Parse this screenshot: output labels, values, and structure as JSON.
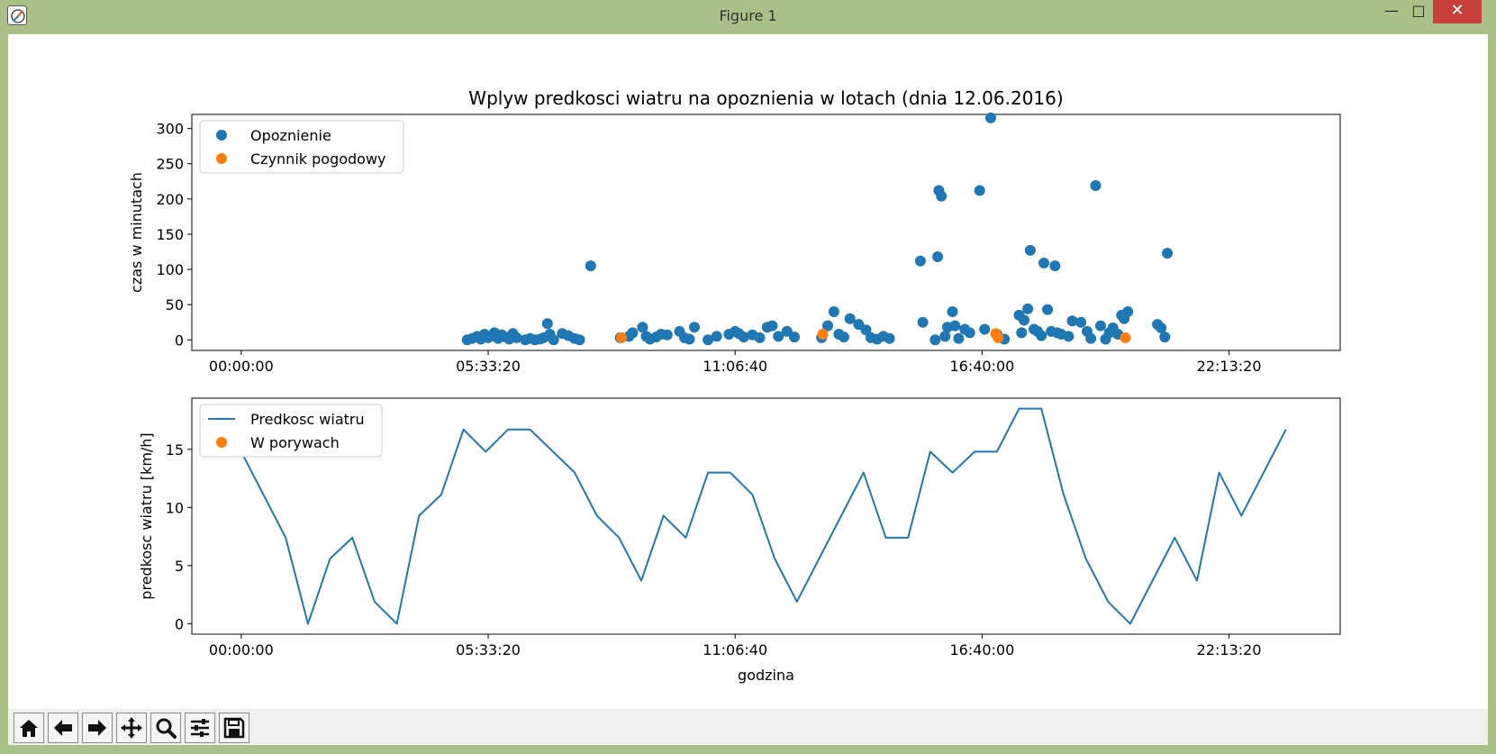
{
  "window": {
    "title": "Figure 1",
    "min_glyph": "—",
    "max_glyph": "□",
    "close_glyph": "✕"
  },
  "toolbar": {
    "buttons": [
      {
        "name": "home-button",
        "icon": "home-icon"
      },
      {
        "name": "back-button",
        "icon": "arrow-left-icon"
      },
      {
        "name": "forward-button",
        "icon": "arrow-right-icon"
      },
      {
        "name": "pan-button",
        "icon": "move-icon"
      },
      {
        "name": "zoom-button",
        "icon": "magnifier-icon"
      },
      {
        "name": "configure-subplots-button",
        "icon": "sliders-icon"
      },
      {
        "name": "save-button",
        "icon": "floppy-disk-icon"
      }
    ]
  },
  "colors": {
    "series_blue": "#1f77b4",
    "series_orange": "#ff7f0e",
    "window_frame": "#a9c089",
    "close_button": "#c7403a"
  },
  "chart_data": [
    {
      "type": "scatter",
      "title": "Wplyw predkosci wiatru na opoznienia w lotach (dnia 12.06.2016)",
      "xlabel": "",
      "ylabel": "czas w minutach",
      "xlim": [
        -4000,
        89000
      ],
      "ylim": [
        -15,
        320
      ],
      "xticks": [
        0,
        20000,
        40000,
        60000,
        80000
      ],
      "xtick_labels": [
        "00:00:00",
        "05:33:20",
        "11:06:40",
        "16:40:00",
        "22:13:20"
      ],
      "yticks": [
        0,
        50,
        100,
        150,
        200,
        250,
        300
      ],
      "ytick_labels": [
        "0",
        "50",
        "100",
        "150",
        "200",
        "250",
        "300"
      ],
      "legend": "top-left",
      "series": [
        {
          "name": "Opoznienie",
          "color": "#1f77b4",
          "points": [
            [
              18300,
              0
            ],
            [
              18700,
              2
            ],
            [
              19100,
              5
            ],
            [
              19400,
              1
            ],
            [
              19700,
              8
            ],
            [
              20000,
              3
            ],
            [
              20300,
              6
            ],
            [
              20500,
              10
            ],
            [
              20800,
              2
            ],
            [
              21100,
              7
            ],
            [
              21400,
              4
            ],
            [
              21700,
              1
            ],
            [
              22000,
              9
            ],
            [
              22300,
              3
            ],
            [
              23000,
              0
            ],
            [
              23400,
              2
            ],
            [
              23800,
              0
            ],
            [
              24200,
              1
            ],
            [
              24500,
              3
            ],
            [
              24800,
              23
            ],
            [
              25000,
              8
            ],
            [
              25300,
              0
            ],
            [
              26000,
              9
            ],
            [
              26500,
              6
            ],
            [
              27000,
              2
            ],
            [
              27400,
              0
            ],
            [
              28300,
              105
            ],
            [
              30700,
              3
            ],
            [
              31400,
              5
            ],
            [
              31700,
              10
            ],
            [
              32500,
              18
            ],
            [
              32800,
              5
            ],
            [
              33100,
              1
            ],
            [
              33600,
              4
            ],
            [
              34000,
              8
            ],
            [
              34500,
              7
            ],
            [
              35500,
              12
            ],
            [
              35900,
              3
            ],
            [
              36300,
              1
            ],
            [
              36700,
              18
            ],
            [
              37800,
              0
            ],
            [
              38500,
              5
            ],
            [
              39500,
              8
            ],
            [
              40000,
              12
            ],
            [
              40300,
              9
            ],
            [
              40700,
              4
            ],
            [
              41400,
              7
            ],
            [
              42000,
              3
            ],
            [
              42600,
              18
            ],
            [
              43000,
              20
            ],
            [
              43500,
              5
            ],
            [
              44200,
              12
            ],
            [
              44800,
              4
            ],
            [
              47000,
              3
            ],
            [
              47500,
              20
            ],
            [
              48000,
              40
            ],
            [
              48400,
              8
            ],
            [
              48800,
              4
            ],
            [
              49300,
              30
            ],
            [
              50000,
              22
            ],
            [
              50600,
              14
            ],
            [
              51000,
              3
            ],
            [
              51500,
              1
            ],
            [
              52000,
              5
            ],
            [
              52500,
              2
            ],
            [
              55000,
              112
            ],
            [
              55200,
              25
            ],
            [
              56200,
              0
            ],
            [
              56400,
              118
            ],
            [
              56500,
              212
            ],
            [
              56700,
              204
            ],
            [
              57000,
              5
            ],
            [
              57200,
              18
            ],
            [
              57600,
              40
            ],
            [
              57800,
              20
            ],
            [
              58100,
              2
            ],
            [
              58600,
              15
            ],
            [
              59000,
              10
            ],
            [
              59800,
              212
            ],
            [
              60200,
              15
            ],
            [
              60700,
              315
            ],
            [
              61200,
              8
            ],
            [
              61800,
              1
            ],
            [
              63000,
              35
            ],
            [
              63200,
              10
            ],
            [
              63400,
              28
            ],
            [
              63700,
              44
            ],
            [
              63900,
              127
            ],
            [
              64200,
              15
            ],
            [
              64500,
              12
            ],
            [
              64800,
              6
            ],
            [
              65000,
              109
            ],
            [
              65300,
              43
            ],
            [
              65600,
              12
            ],
            [
              65900,
              105
            ],
            [
              66100,
              10
            ],
            [
              66400,
              8
            ],
            [
              67000,
              5
            ],
            [
              67300,
              27
            ],
            [
              68000,
              25
            ],
            [
              68500,
              12
            ],
            [
              68800,
              2
            ],
            [
              69200,
              219
            ],
            [
              69600,
              20
            ],
            [
              70000,
              1
            ],
            [
              70300,
              10
            ],
            [
              70600,
              17
            ],
            [
              71000,
              8
            ],
            [
              71300,
              35
            ],
            [
              71500,
              30
            ],
            [
              71800,
              40
            ],
            [
              74200,
              22
            ],
            [
              74500,
              17
            ],
            [
              74800,
              4
            ],
            [
              75000,
              123
            ]
          ]
        },
        {
          "name": "Czynnik pogodowy",
          "color": "#ff7f0e",
          "points": [
            [
              30800,
              3
            ],
            [
              47100,
              8
            ],
            [
              61100,
              9
            ],
            [
              61300,
              3
            ],
            [
              71600,
              3
            ]
          ]
        }
      ]
    },
    {
      "type": "line",
      "title": "",
      "xlabel": "godzina",
      "ylabel": "predkosc wiatru [km/h]",
      "xlim": [
        -4000,
        89000
      ],
      "ylim": [
        -0.9,
        19.4
      ],
      "xticks": [
        0,
        20000,
        40000,
        60000,
        80000
      ],
      "xtick_labels": [
        "00:00:00",
        "05:33:20",
        "11:06:40",
        "16:40:00",
        "22:13:20"
      ],
      "yticks": [
        0,
        5,
        10,
        15
      ],
      "ytick_labels": [
        "0",
        "5",
        "10",
        "15"
      ],
      "legend": "top-left",
      "series": [
        {
          "name": "Predkosc wiatru",
          "color": "#1f77b4",
          "points": [
            [
              0,
              14.8
            ],
            [
              3600,
              7.4
            ],
            [
              5400,
              0
            ],
            [
              7200,
              5.6
            ],
            [
              9000,
              7.4
            ],
            [
              10800,
              1.9
            ],
            [
              12600,
              0
            ],
            [
              14400,
              9.3
            ],
            [
              16200,
              11.1
            ],
            [
              18000,
              16.7
            ],
            [
              19800,
              14.8
            ],
            [
              21600,
              16.7
            ],
            [
              23400,
              16.7
            ],
            [
              27000,
              13.0
            ],
            [
              28800,
              9.3
            ],
            [
              30600,
              7.4
            ],
            [
              32400,
              3.7
            ],
            [
              34200,
              9.3
            ],
            [
              36000,
              7.4
            ],
            [
              37800,
              13.0
            ],
            [
              39600,
              13.0
            ],
            [
              41400,
              11.1
            ],
            [
              43200,
              5.6
            ],
            [
              45000,
              1.9
            ],
            [
              50400,
              13.0
            ],
            [
              52200,
              7.4
            ],
            [
              54000,
              7.4
            ],
            [
              55800,
              14.8
            ],
            [
              57600,
              13.0
            ],
            [
              59400,
              14.8
            ],
            [
              61200,
              14.8
            ],
            [
              63000,
              18.5
            ],
            [
              64800,
              18.5
            ],
            [
              66600,
              11.1
            ],
            [
              68400,
              5.6
            ],
            [
              70200,
              1.9
            ],
            [
              72000,
              0
            ],
            [
              75600,
              7.4
            ],
            [
              77400,
              3.7
            ],
            [
              79200,
              13.0
            ],
            [
              81000,
              9.3
            ],
            [
              84600,
              16.7
            ]
          ]
        },
        {
          "name": "W porywach",
          "color": "#ff7f0e",
          "points": []
        }
      ]
    }
  ]
}
